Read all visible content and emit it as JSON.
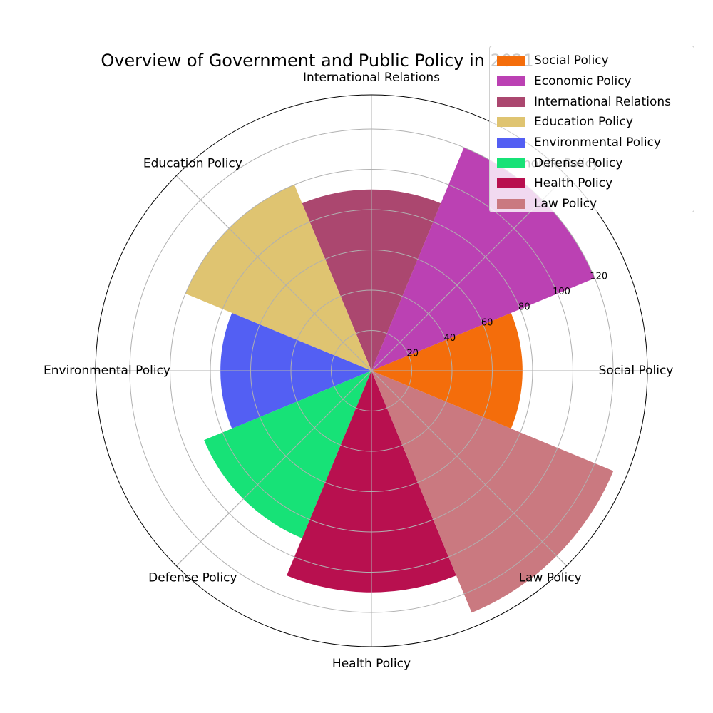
{
  "chart_data": {
    "type": "bar",
    "subtype": "polar",
    "title": "Overview of Government and Public Policy in 2021",
    "categories": [
      "Social Policy",
      "Economic Policy",
      "International Relations",
      "Education Policy",
      "Environmental Policy",
      "Defense Policy",
      "Health Policy",
      "Law Policy"
    ],
    "values": [
      75,
      120,
      90,
      100,
      75,
      90,
      110,
      130
    ],
    "colors": [
      "#f46d0b",
      "#bb41b3",
      "#ab476f",
      "#dfc471",
      "#535ff3",
      "#17e277",
      "#b8104f",
      "#ca7980"
    ],
    "rlim": [
      0,
      137
    ],
    "rticks": [
      20,
      40,
      60,
      80,
      100,
      120
    ],
    "grid": true,
    "legend_position": "top-right"
  }
}
